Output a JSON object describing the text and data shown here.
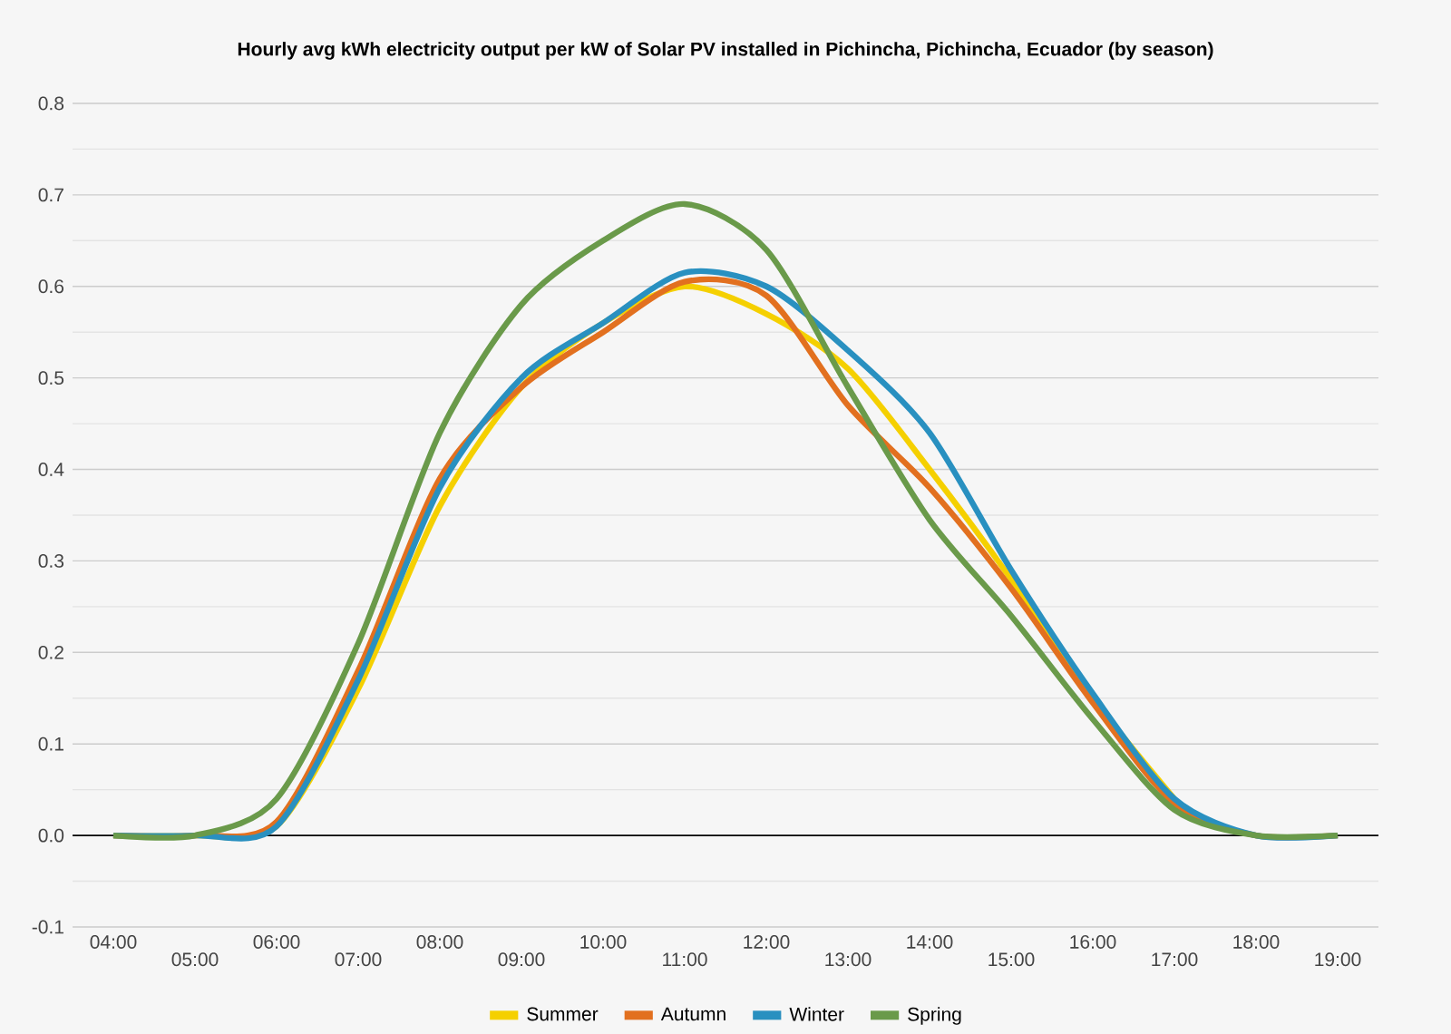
{
  "chart_data": {
    "type": "line",
    "title": "Hourly avg kWh electricity output per kW of Solar PV installed in Pichincha, Pichincha, Ecuador (by season)",
    "categories": [
      "04:00",
      "05:00",
      "06:00",
      "07:00",
      "08:00",
      "09:00",
      "10:00",
      "11:00",
      "12:00",
      "13:00",
      "14:00",
      "15:00",
      "16:00",
      "17:00",
      "18:00",
      "19:00"
    ],
    "series": [
      {
        "name": "Summer",
        "color": "#f5d000",
        "values": [
          0,
          0,
          0.01,
          0.16,
          0.36,
          0.49,
          0.56,
          0.6,
          0.57,
          0.51,
          0.4,
          0.28,
          0.15,
          0.04,
          null,
          null
        ]
      },
      {
        "name": "Autumn",
        "color": "#e2701f",
        "values": [
          0,
          0,
          0.015,
          0.18,
          0.39,
          0.49,
          0.55,
          0.605,
          0.59,
          0.47,
          0.38,
          0.27,
          0.145,
          0.035,
          0,
          0
        ]
      },
      {
        "name": "Winter",
        "color": "#2990c0",
        "values": [
          0,
          0,
          0.01,
          0.17,
          0.38,
          0.5,
          0.56,
          0.615,
          0.6,
          0.53,
          0.44,
          0.29,
          0.155,
          0.04,
          0,
          0
        ]
      },
      {
        "name": "Spring",
        "color": "#6a9a4a",
        "values": [
          0,
          0,
          0.04,
          0.21,
          0.44,
          0.58,
          0.65,
          0.69,
          0.64,
          0.49,
          0.345,
          0.24,
          0.127,
          0.028,
          0,
          0
        ]
      }
    ],
    "ylim": [
      -0.1,
      0.8
    ],
    "yticks": [
      -0.1,
      {
        "value": 0,
        "label": "0.0"
      },
      0.1,
      0.2,
      0.3,
      0.4,
      0.5,
      0.6,
      0.7,
      0.8
    ],
    "grid": "y",
    "legend": "bottom",
    "marker": "none",
    "line_style": "solid"
  }
}
